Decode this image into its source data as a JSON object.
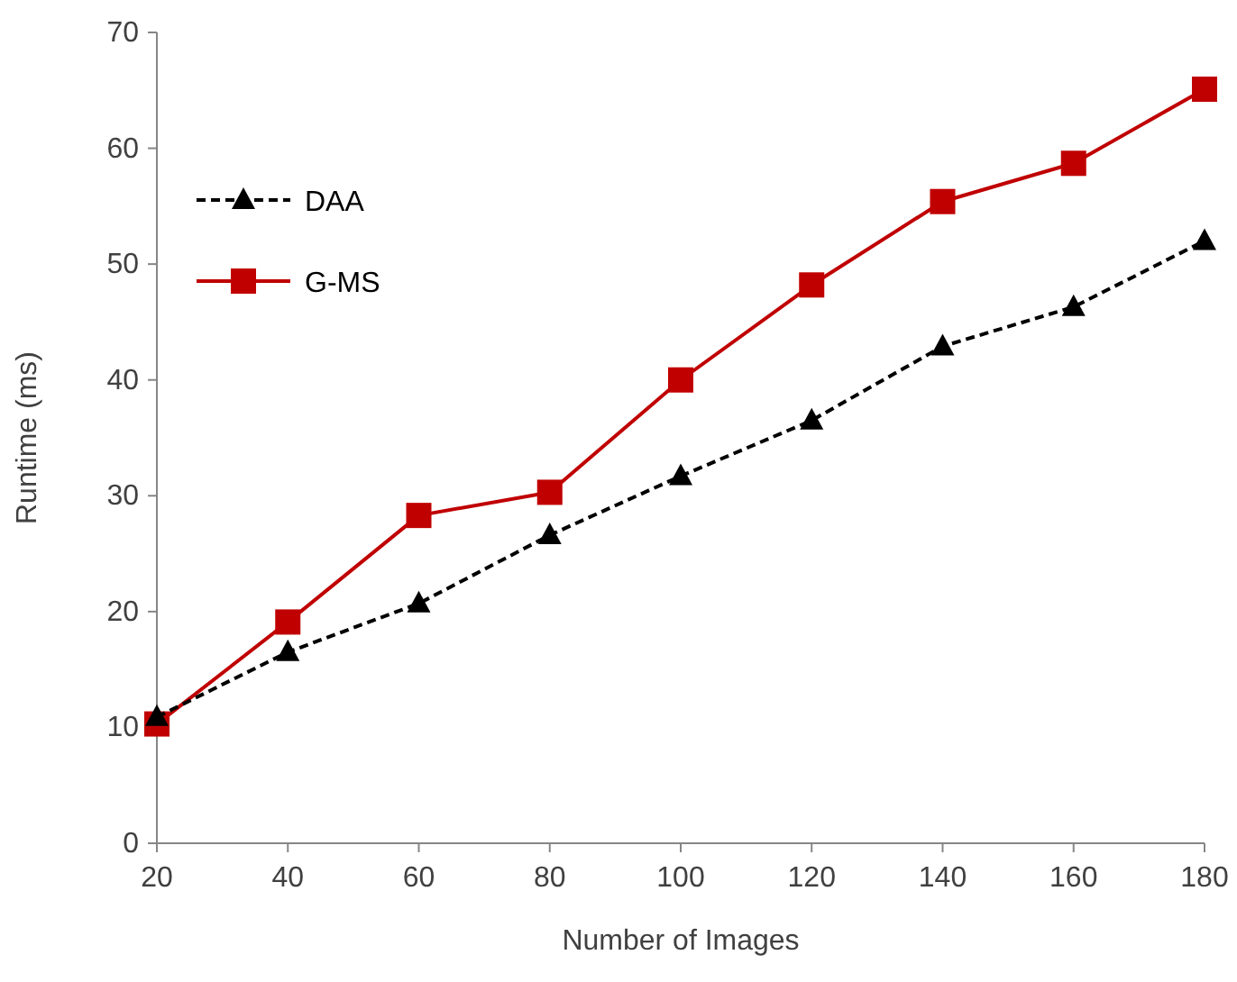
{
  "chart_data": {
    "type": "line",
    "xlabel": "Number of Images",
    "ylabel": "Runtime (ms)",
    "x": [
      20,
      40,
      60,
      80,
      100,
      120,
      140,
      160,
      180
    ],
    "xlim": [
      20,
      180
    ],
    "xticks": [
      20,
      40,
      60,
      80,
      100,
      120,
      140,
      160,
      180
    ],
    "ylim": [
      0,
      70
    ],
    "yticks": [
      0,
      10,
      20,
      30,
      40,
      50,
      60,
      70
    ],
    "grid": false,
    "legend": "top left",
    "series": [
      {
        "name": "DAA",
        "color": "#000000",
        "marker": "triangle",
        "line_style": "dashed",
        "values": [
          10.9,
          16.5,
          20.7,
          26.6,
          31.7,
          36.5,
          42.9,
          46.3,
          52.0
        ]
      },
      {
        "name": "G-MS",
        "color": "#c00000",
        "marker": "square",
        "line_style": "solid",
        "values": [
          10.3,
          19.1,
          28.3,
          30.3,
          40.0,
          48.2,
          55.4,
          58.7,
          65.1
        ]
      }
    ]
  }
}
